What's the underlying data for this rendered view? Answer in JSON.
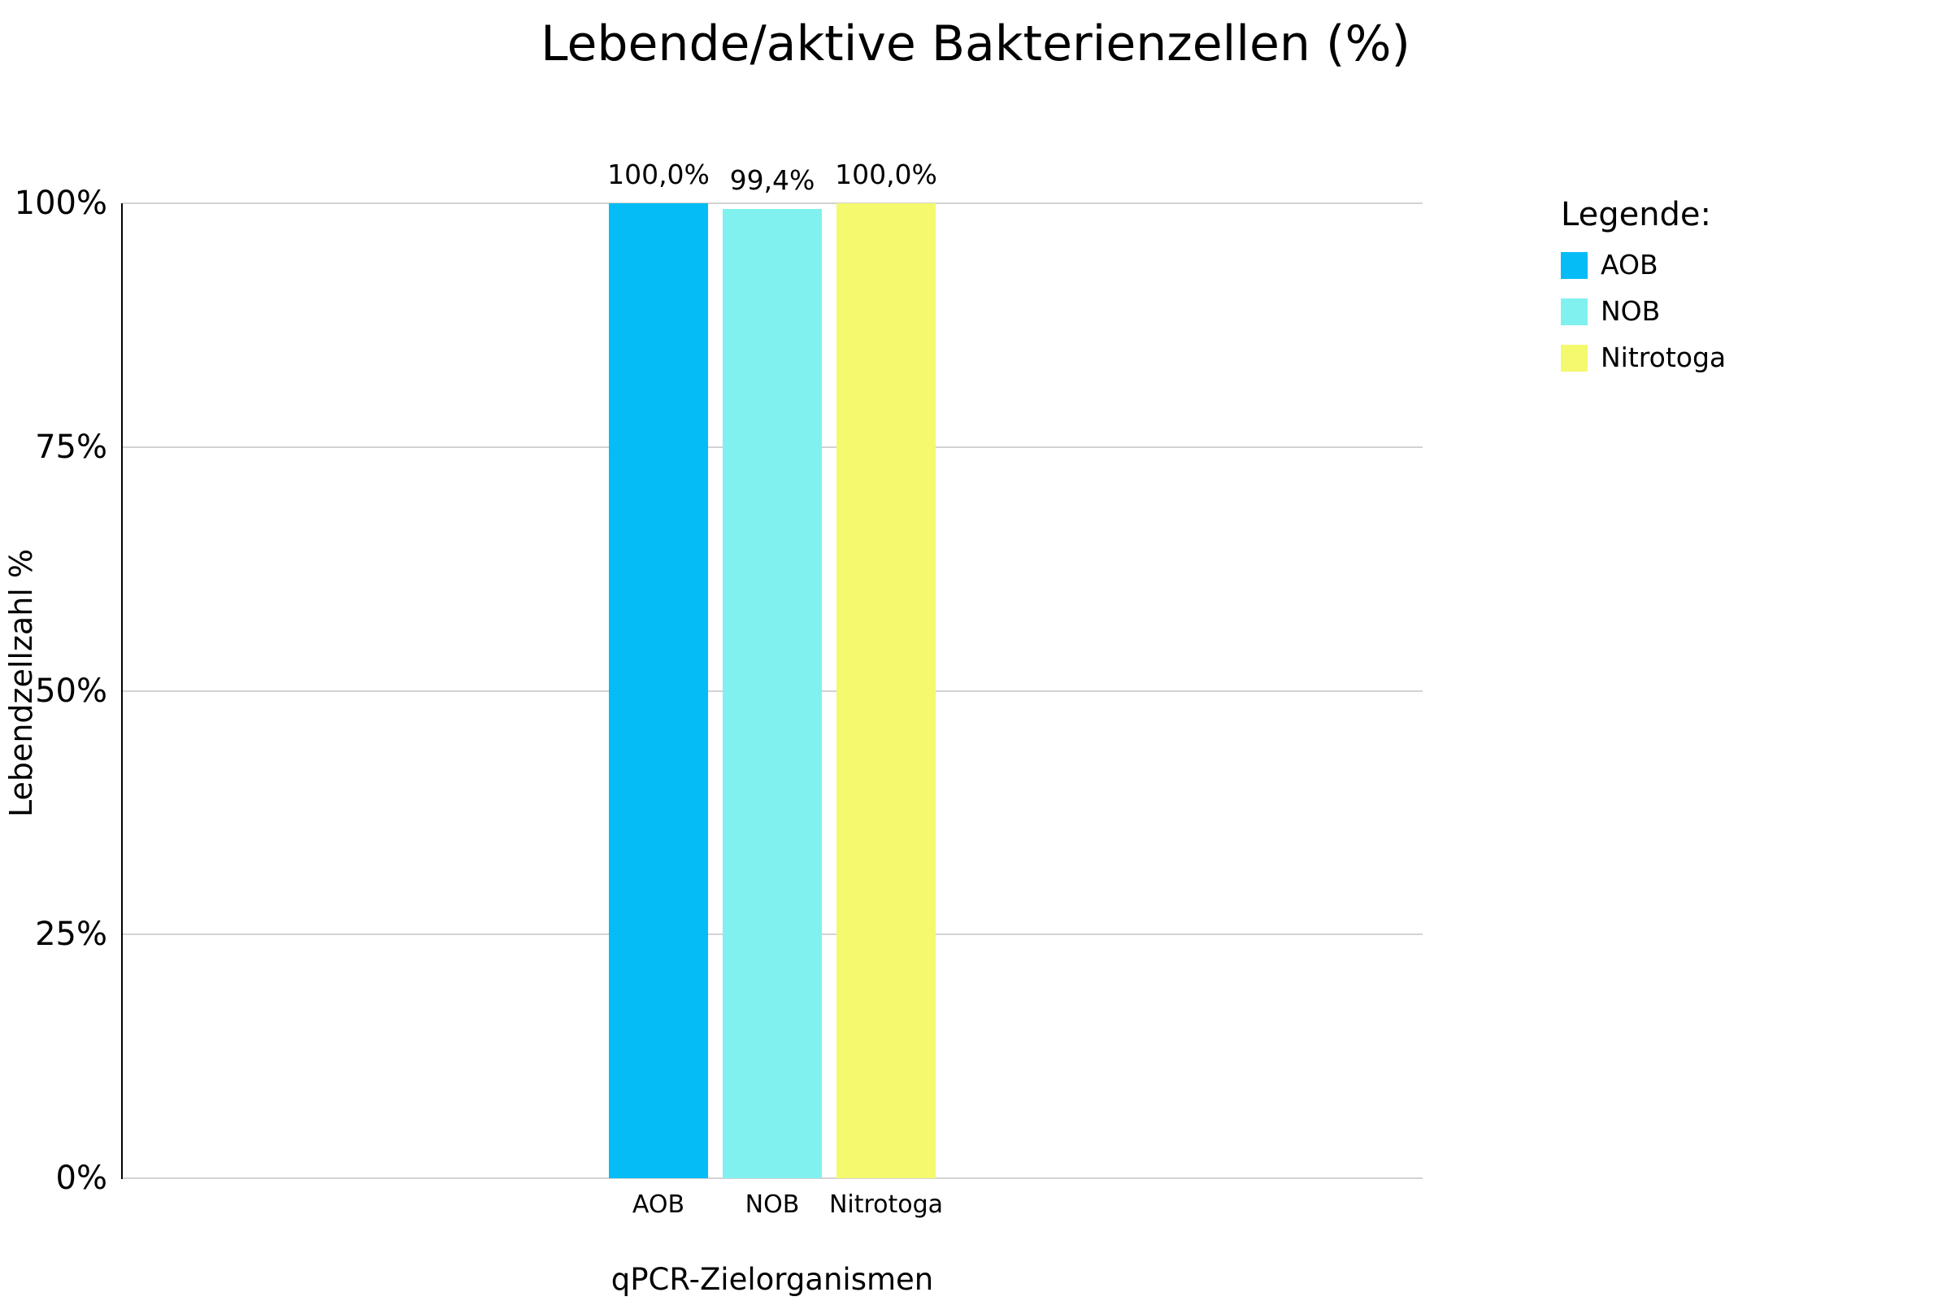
{
  "chart_data": {
    "type": "bar",
    "title": "Lebende/aktive Bakterienzellen (%)",
    "xlabel": "qPCR-Zielorganismen",
    "ylabel": "Lebendzellzahl %",
    "categories": [
      "AOB",
      "NOB",
      "Nitrotoga"
    ],
    "values": [
      100.0,
      99.4,
      100.0
    ],
    "value_labels": [
      "100,0%",
      "99,4%",
      "100,0%"
    ],
    "bar_colors": [
      "#06BCF6",
      "#81F1F0",
      "#F4F96D"
    ],
    "ylim": [
      0,
      100
    ],
    "yticks": [
      0,
      25,
      50,
      75,
      100
    ],
    "ytick_labels": [
      "0%",
      "25%",
      "50%",
      "75%",
      "100%"
    ],
    "grid": true,
    "gridline_color": "#d3d3d3",
    "axis_color": "#000000",
    "background_color": "#ffffff",
    "legend": {
      "title": "Legende:",
      "position": "right",
      "entries": [
        {
          "label": "AOB",
          "color": "#06BCF6"
        },
        {
          "label": "NOB",
          "color": "#81F1F0"
        },
        {
          "label": "Nitrotoga",
          "color": "#F4F96D"
        }
      ]
    }
  }
}
